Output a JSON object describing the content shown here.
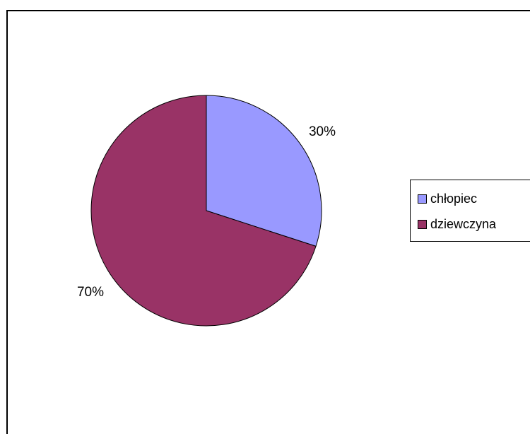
{
  "chart_data": {
    "type": "pie",
    "categories": [
      "chłopiec",
      "dziewczyna"
    ],
    "values": [
      30,
      70
    ],
    "labels": [
      "30%",
      "70%"
    ],
    "colors": [
      "#9999ff",
      "#993366"
    ],
    "title": "",
    "legend_position": "right"
  }
}
